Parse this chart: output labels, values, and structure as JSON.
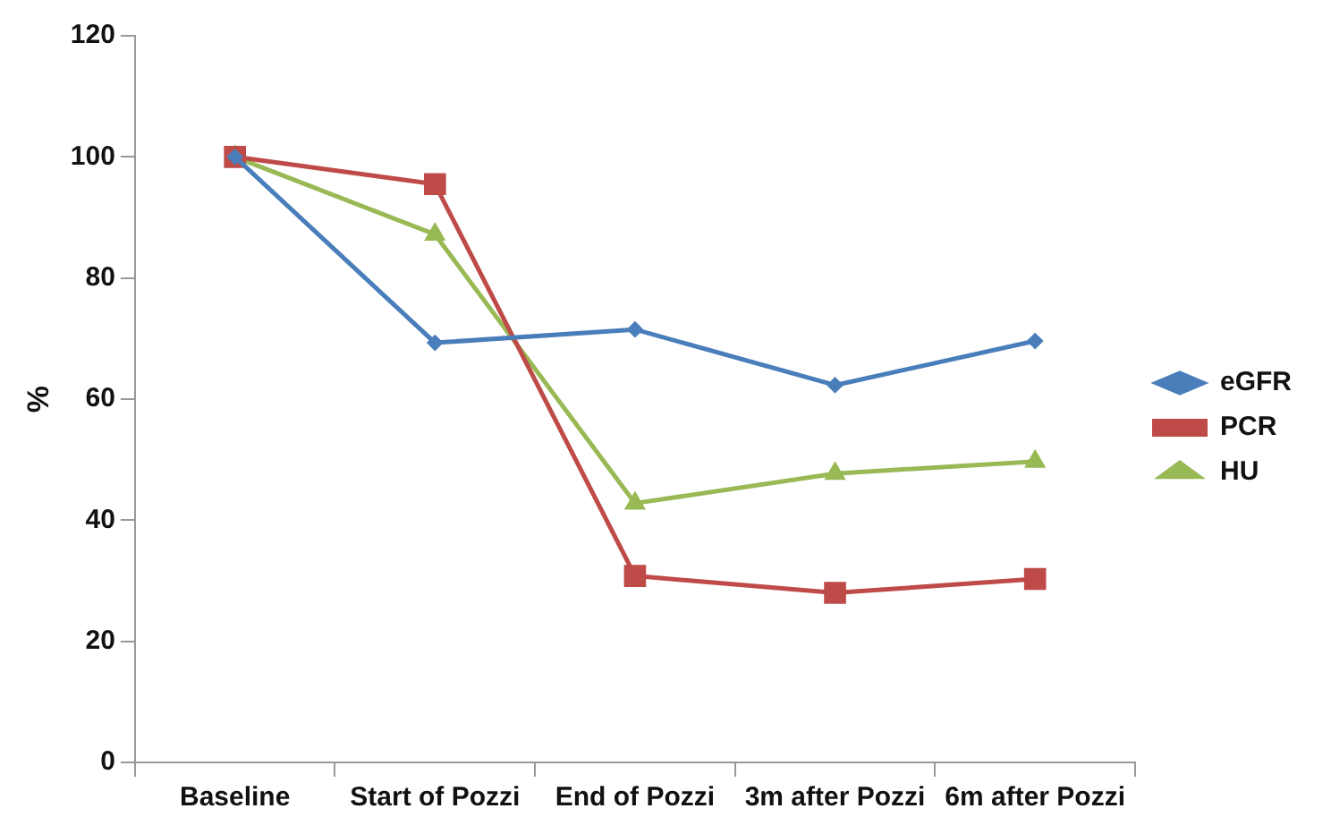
{
  "chart_data": {
    "type": "line",
    "ylabel": "%",
    "categories": [
      "Baseline",
      "Start of Pozzi",
      "End of Pozzi",
      "3m after Pozzi",
      "6m after Pozzi"
    ],
    "series": [
      {
        "name": "eGFR",
        "color": "#4a7ebb",
        "marker": "diamond",
        "values": [
          100,
          69.3,
          71.5,
          62.3,
          69.6
        ]
      },
      {
        "name": "PCR",
        "color": "#be4b48",
        "marker": "square",
        "values": [
          100,
          95.5,
          30.8,
          28.0,
          30.3
        ]
      },
      {
        "name": "HU",
        "color": "#98b954",
        "marker": "triangle",
        "values": [
          100,
          87.2,
          42.8,
          47.7,
          49.7
        ]
      }
    ],
    "ylim": [
      0,
      120
    ],
    "yticks": [
      0,
      20,
      40,
      60,
      80,
      100,
      120
    ],
    "grid": false,
    "legend": "right"
  }
}
